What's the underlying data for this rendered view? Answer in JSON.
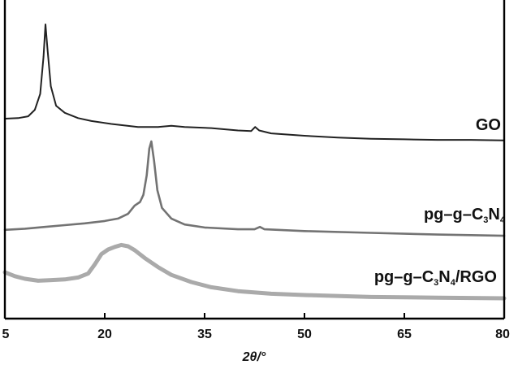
{
  "chart_data": {
    "type": "line",
    "xlabel": "2θ/°",
    "ylabel": "",
    "xlim": [
      5,
      80
    ],
    "xticks": [
      "5",
      "20",
      "35",
      "50",
      "65",
      "80"
    ],
    "xtick_values": [
      5,
      20,
      35,
      50,
      65,
      80
    ],
    "y_axis_visible": false,
    "grid": false,
    "legend": "labels placed at right end of each curve",
    "series": [
      {
        "name": "GO",
        "label_parts": [
          [
            "GO",
            ""
          ]
        ],
        "color": "#222222",
        "stroke": 2,
        "points": [
          [
            5,
            0.4
          ],
          [
            7,
            0.41
          ],
          [
            8.5,
            0.44
          ],
          [
            9.5,
            0.55
          ],
          [
            10.3,
            0.82
          ],
          [
            10.8,
            1.45
          ],
          [
            11.1,
            2.0
          ],
          [
            11.4,
            1.58
          ],
          [
            11.9,
            0.95
          ],
          [
            12.7,
            0.62
          ],
          [
            14,
            0.5
          ],
          [
            16,
            0.41
          ],
          [
            18,
            0.36
          ],
          [
            21,
            0.31
          ],
          [
            25,
            0.26
          ],
          [
            28,
            0.26
          ],
          [
            30,
            0.28
          ],
          [
            32,
            0.26
          ],
          [
            36,
            0.24
          ],
          [
            40,
            0.2
          ],
          [
            42,
            0.19
          ],
          [
            42.6,
            0.26
          ],
          [
            43.2,
            0.2
          ],
          [
            45,
            0.15
          ],
          [
            50,
            0.11
          ],
          [
            55,
            0.08
          ],
          [
            60,
            0.06
          ],
          [
            65,
            0.05
          ],
          [
            70,
            0.04
          ],
          [
            75,
            0.04
          ],
          [
            80,
            0.03
          ]
        ]
      },
      {
        "name": "pg-g-C3N4",
        "label_parts": [
          [
            "pg–g–C",
            ""
          ],
          [
            "3",
            "sub"
          ],
          [
            "N",
            ""
          ],
          [
            "4",
            "sub"
          ]
        ],
        "color": "#737373",
        "stroke": 2.6,
        "points": [
          [
            5,
            0.03
          ],
          [
            8,
            0.05
          ],
          [
            11,
            0.08
          ],
          [
            14,
            0.11
          ],
          [
            17,
            0.14
          ],
          [
            20,
            0.18
          ],
          [
            22,
            0.22
          ],
          [
            23.5,
            0.3
          ],
          [
            24.5,
            0.44
          ],
          [
            25.3,
            0.5
          ],
          [
            25.8,
            0.62
          ],
          [
            26.3,
            0.95
          ],
          [
            26.7,
            1.4
          ],
          [
            27.0,
            1.52
          ],
          [
            27.4,
            1.2
          ],
          [
            27.9,
            0.7
          ],
          [
            28.6,
            0.4
          ],
          [
            30,
            0.22
          ],
          [
            32,
            0.12
          ],
          [
            35,
            0.07
          ],
          [
            40,
            0.04
          ],
          [
            42.5,
            0.04
          ],
          [
            43.3,
            0.08
          ],
          [
            44,
            0.04
          ],
          [
            50,
            0.01
          ],
          [
            60,
            -0.02
          ],
          [
            70,
            -0.05
          ],
          [
            80,
            -0.07
          ]
        ]
      },
      {
        "name": "pg-g-C3N4/RGO",
        "label_parts": [
          [
            "pg–g–C",
            ""
          ],
          [
            "3",
            "sub"
          ],
          [
            "N",
            ""
          ],
          [
            "4",
            "sub"
          ],
          [
            "/RGO",
            ""
          ]
        ],
        "color": "#aaaaaa",
        "stroke": 5,
        "points": [
          [
            5,
            0.4
          ],
          [
            6.5,
            0.34
          ],
          [
            8,
            0.3
          ],
          [
            10,
            0.27
          ],
          [
            12,
            0.28
          ],
          [
            14,
            0.29
          ],
          [
            16,
            0.32
          ],
          [
            17.5,
            0.38
          ],
          [
            18.5,
            0.52
          ],
          [
            19.5,
            0.68
          ],
          [
            20.5,
            0.75
          ],
          [
            21.5,
            0.79
          ],
          [
            22.5,
            0.82
          ],
          [
            23.5,
            0.8
          ],
          [
            24.5,
            0.74
          ],
          [
            26,
            0.62
          ],
          [
            28,
            0.48
          ],
          [
            30,
            0.36
          ],
          [
            33,
            0.25
          ],
          [
            36,
            0.17
          ],
          [
            40,
            0.11
          ],
          [
            45,
            0.07
          ],
          [
            50,
            0.05
          ],
          [
            60,
            0.02
          ],
          [
            70,
            0.01
          ],
          [
            80,
            0.0
          ]
        ]
      }
    ]
  }
}
